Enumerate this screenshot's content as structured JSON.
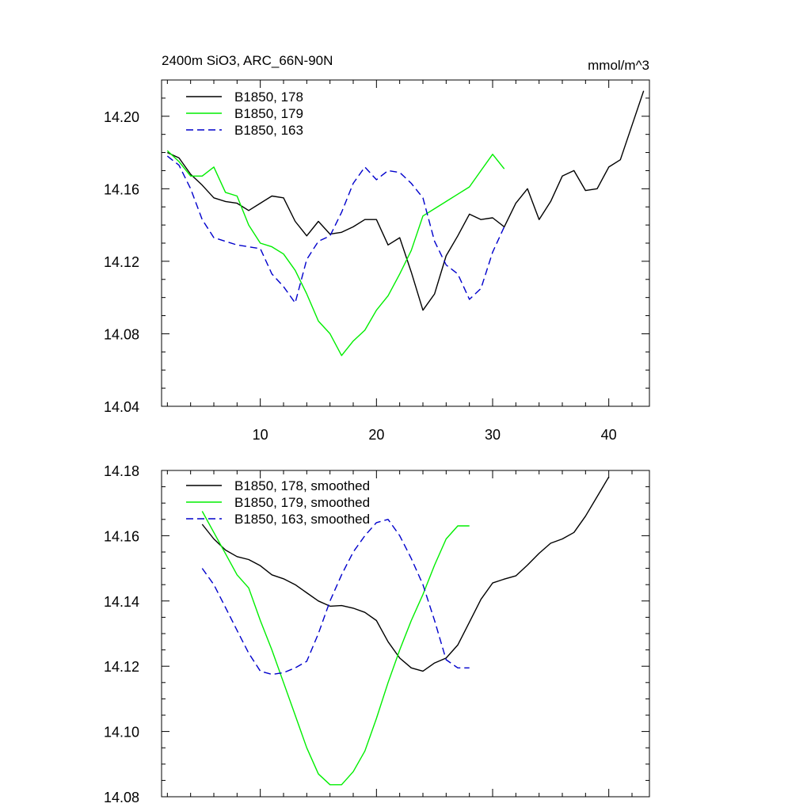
{
  "chart_data": [
    {
      "type": "line",
      "title": "2400m SiO3, ARC_66N-90N",
      "units_label": "mmol/m^3",
      "xlim": [
        1.5,
        43.5
      ],
      "ylim": [
        14.04,
        14.22
      ],
      "x_ticks": [
        10,
        20,
        30,
        40
      ],
      "y_ticks": [
        "14.04",
        "14.08",
        "14.12",
        "14.16",
        "14.20"
      ],
      "legend_position": "top-left",
      "series": [
        {
          "name": "B1850, 178",
          "color": "#000000",
          "dash": "solid",
          "x": [
            2,
            3,
            4,
            5,
            6,
            7,
            8,
            9,
            10,
            11,
            12,
            13,
            14,
            15,
            16,
            17,
            18,
            19,
            20,
            21,
            22,
            23,
            24,
            25,
            26,
            27,
            28,
            29,
            30,
            31,
            32,
            33,
            34,
            35,
            36,
            37,
            38,
            39,
            40,
            41,
            42,
            43
          ],
          "y": [
            14.18,
            14.177,
            14.168,
            14.162,
            14.155,
            14.153,
            14.152,
            14.148,
            14.152,
            14.156,
            14.155,
            14.142,
            14.134,
            14.142,
            14.135,
            14.136,
            14.139,
            14.143,
            14.143,
            14.129,
            14.133,
            14.114,
            14.093,
            14.102,
            14.123,
            14.134,
            14.146,
            14.143,
            14.144,
            14.139,
            14.152,
            14.16,
            14.143,
            14.153,
            14.167,
            14.17,
            14.159,
            14.16,
            14.172,
            14.176,
            14.195,
            14.214
          ]
        },
        {
          "name": "B1850, 179",
          "color": "#00ee00",
          "dash": "solid",
          "x": [
            2,
            3,
            4,
            5,
            6,
            7,
            8,
            9,
            10,
            11,
            12,
            13,
            14,
            15,
            16,
            17,
            18,
            19,
            20,
            21,
            22,
            23,
            24,
            25,
            26,
            27,
            28,
            29,
            30,
            31
          ],
          "y": [
            14.181,
            14.175,
            14.167,
            14.167,
            14.172,
            14.158,
            14.156,
            14.14,
            14.13,
            14.128,
            14.124,
            14.115,
            14.102,
            14.087,
            14.08,
            14.068,
            14.076,
            14.082,
            14.093,
            14.101,
            14.113,
            14.126,
            14.145,
            14.149,
            14.153,
            14.157,
            14.161,
            14.17,
            14.179,
            14.171
          ]
        },
        {
          "name": "B1850, 163",
          "color": "#0000cc",
          "dash": "dashed",
          "x": [
            2,
            3,
            4,
            5,
            6,
            7,
            8,
            9,
            10,
            11,
            12,
            13,
            14,
            15,
            16,
            17,
            18,
            19,
            20,
            21,
            22,
            23,
            24,
            25,
            26,
            27,
            28,
            29,
            30,
            31
          ],
          "y": [
            14.178,
            14.173,
            14.16,
            14.143,
            14.133,
            14.131,
            14.129,
            14.128,
            14.127,
            14.113,
            14.106,
            14.097,
            14.121,
            14.131,
            14.134,
            14.147,
            14.163,
            14.172,
            14.165,
            14.17,
            14.169,
            14.163,
            14.155,
            14.131,
            14.118,
            14.113,
            14.099,
            14.105,
            14.125,
            14.139
          ]
        }
      ]
    },
    {
      "type": "line",
      "xlim": [
        1.5,
        43.5
      ],
      "ylim": [
        14.08,
        14.18
      ],
      "y_ticks": [
        "14.08",
        "14.10",
        "14.12",
        "14.14",
        "14.16",
        "14.18"
      ],
      "legend_position": "top-left",
      "series": [
        {
          "name": "B1850, 178, smoothed",
          "color": "#000000",
          "dash": "solid",
          "x": [
            5,
            6,
            7,
            8,
            9,
            10,
            11,
            12,
            13,
            14,
            15,
            16,
            17,
            18,
            19,
            20,
            21,
            22,
            23,
            24,
            25,
            26,
            27,
            28,
            29,
            30,
            31,
            32,
            33,
            34,
            35,
            36,
            37,
            38,
            39,
            40
          ],
          "y": [
            14.1635,
            14.159,
            14.1556,
            14.1536,
            14.1527,
            14.1508,
            14.148,
            14.1468,
            14.145,
            14.1425,
            14.14,
            14.1384,
            14.1386,
            14.1378,
            14.1365,
            14.134,
            14.1275,
            14.1225,
            14.1195,
            14.1185,
            14.121,
            14.1225,
            14.1265,
            14.1335,
            14.1405,
            14.1455,
            14.1467,
            14.1477,
            14.151,
            14.1546,
            14.1577,
            14.159,
            14.161,
            14.166,
            14.172,
            14.178
          ]
        },
        {
          "name": "B1850, 179, smoothed",
          "color": "#00ee00",
          "dash": "solid",
          "x": [
            5,
            6,
            7,
            8,
            9,
            10,
            11,
            12,
            13,
            14,
            15,
            16,
            17,
            18,
            19,
            20,
            21,
            22,
            23,
            24,
            25,
            26,
            27,
            28
          ],
          "y": [
            14.1675,
            14.161,
            14.1545,
            14.148,
            14.144,
            14.134,
            14.125,
            14.115,
            14.105,
            14.095,
            14.087,
            14.0837,
            14.0837,
            14.0877,
            14.094,
            14.104,
            14.115,
            14.125,
            14.134,
            14.142,
            14.151,
            14.159,
            14.163,
            14.163
          ]
        },
        {
          "name": "B1850, 163, smoothed",
          "color": "#0000cc",
          "dash": "dashed",
          "x": [
            5,
            6,
            7,
            8,
            9,
            10,
            11,
            12,
            13,
            14,
            15,
            16,
            17,
            18,
            19,
            20,
            21,
            22,
            23,
            24,
            25,
            26,
            27,
            28
          ],
          "y": [
            14.15,
            14.145,
            14.138,
            14.131,
            14.124,
            14.1185,
            14.1175,
            14.118,
            14.1195,
            14.1215,
            14.13,
            14.14,
            14.148,
            14.155,
            14.16,
            14.164,
            14.165,
            14.16,
            14.153,
            14.145,
            14.134,
            14.122,
            14.1195,
            14.1195
          ]
        }
      ]
    }
  ]
}
